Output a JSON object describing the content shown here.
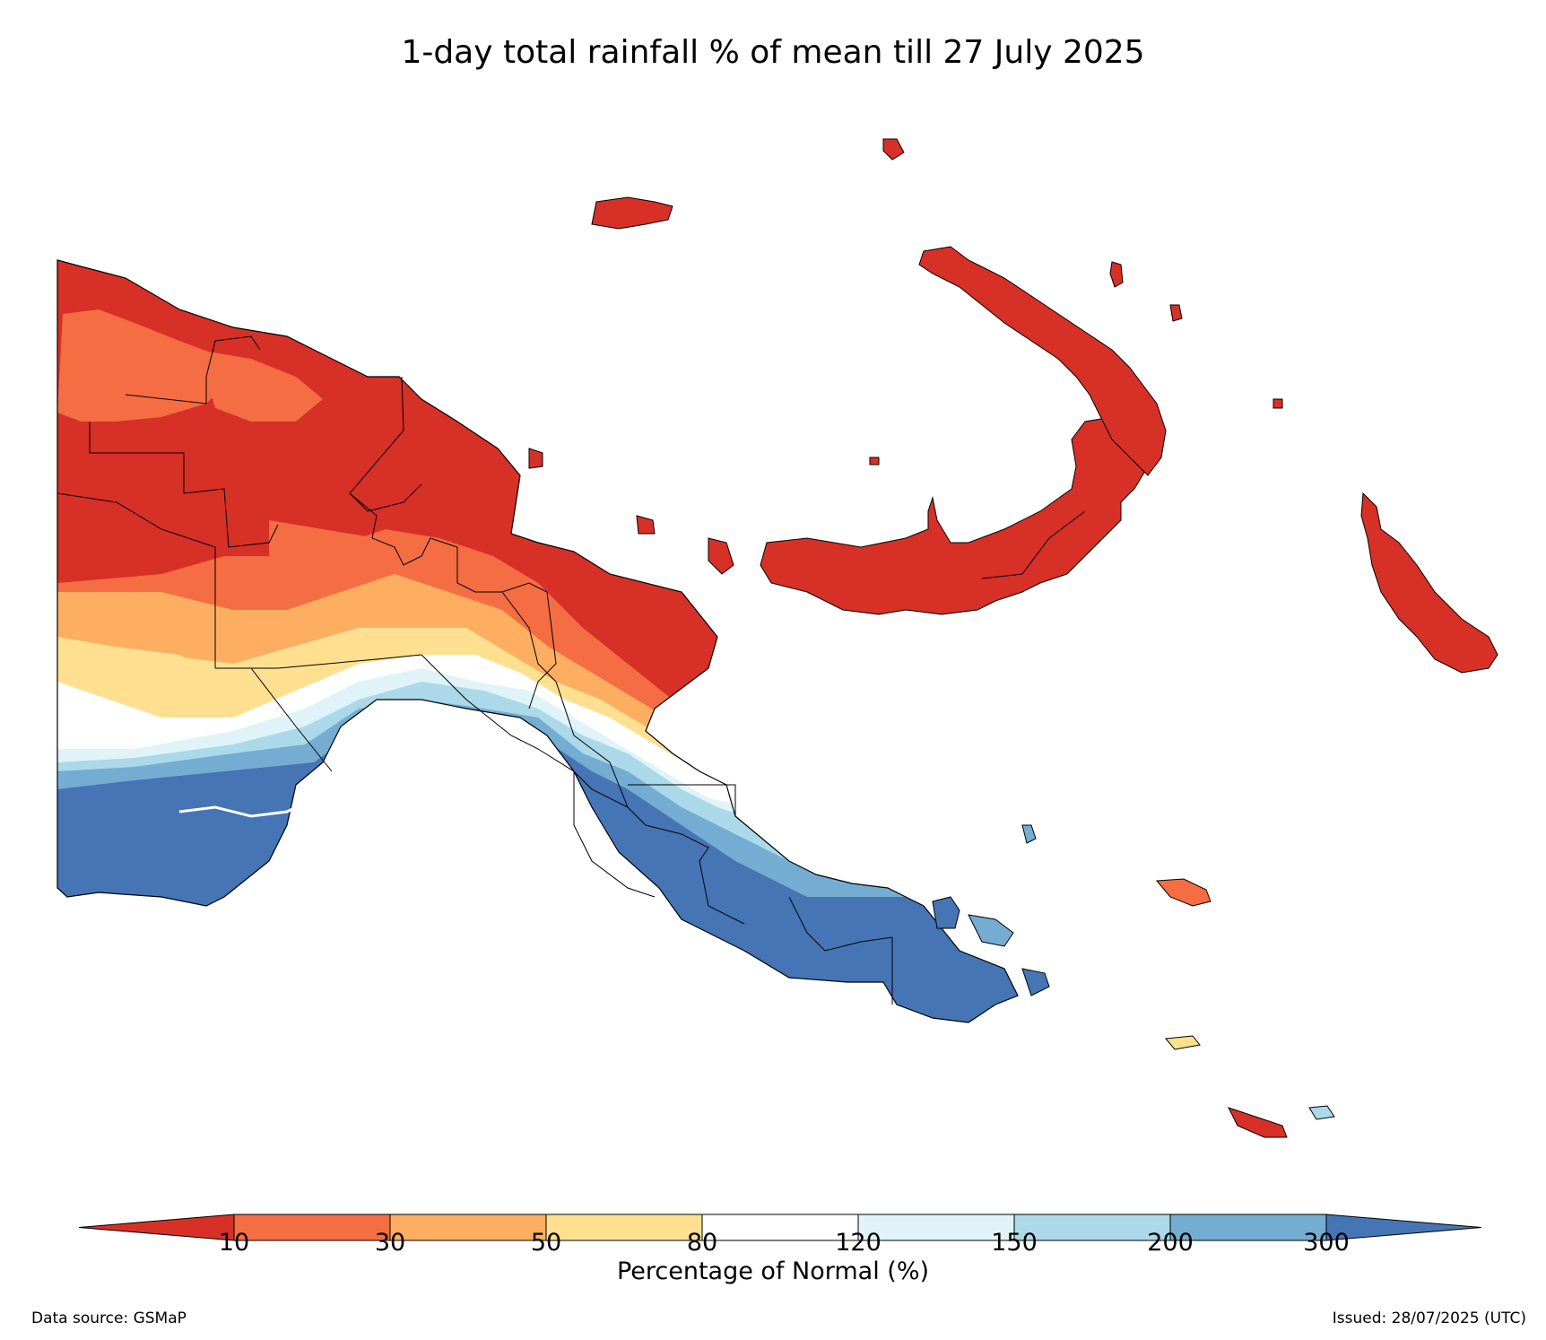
{
  "title": "1-day total rainfall % of mean till 27 July 2025",
  "colorbar": {
    "label": "Percentage of Normal (%)",
    "ticks": [
      "10",
      "30",
      "50",
      "80",
      "120",
      "150",
      "200",
      "300"
    ],
    "colors": {
      "below_10": "#d73027",
      "10_30": "#f46d43",
      "30_50": "#fdae61",
      "50_80": "#fee090",
      "80_120": "#ffffff",
      "120_150": "#e0f3f8",
      "150_200": "#abd9e9",
      "200_300": "#74add1",
      "above_300": "#4575b4"
    }
  },
  "footer": {
    "source": "Data source: GSMaP",
    "issued": "Issued: 28/07/2025 (UTC)"
  }
}
